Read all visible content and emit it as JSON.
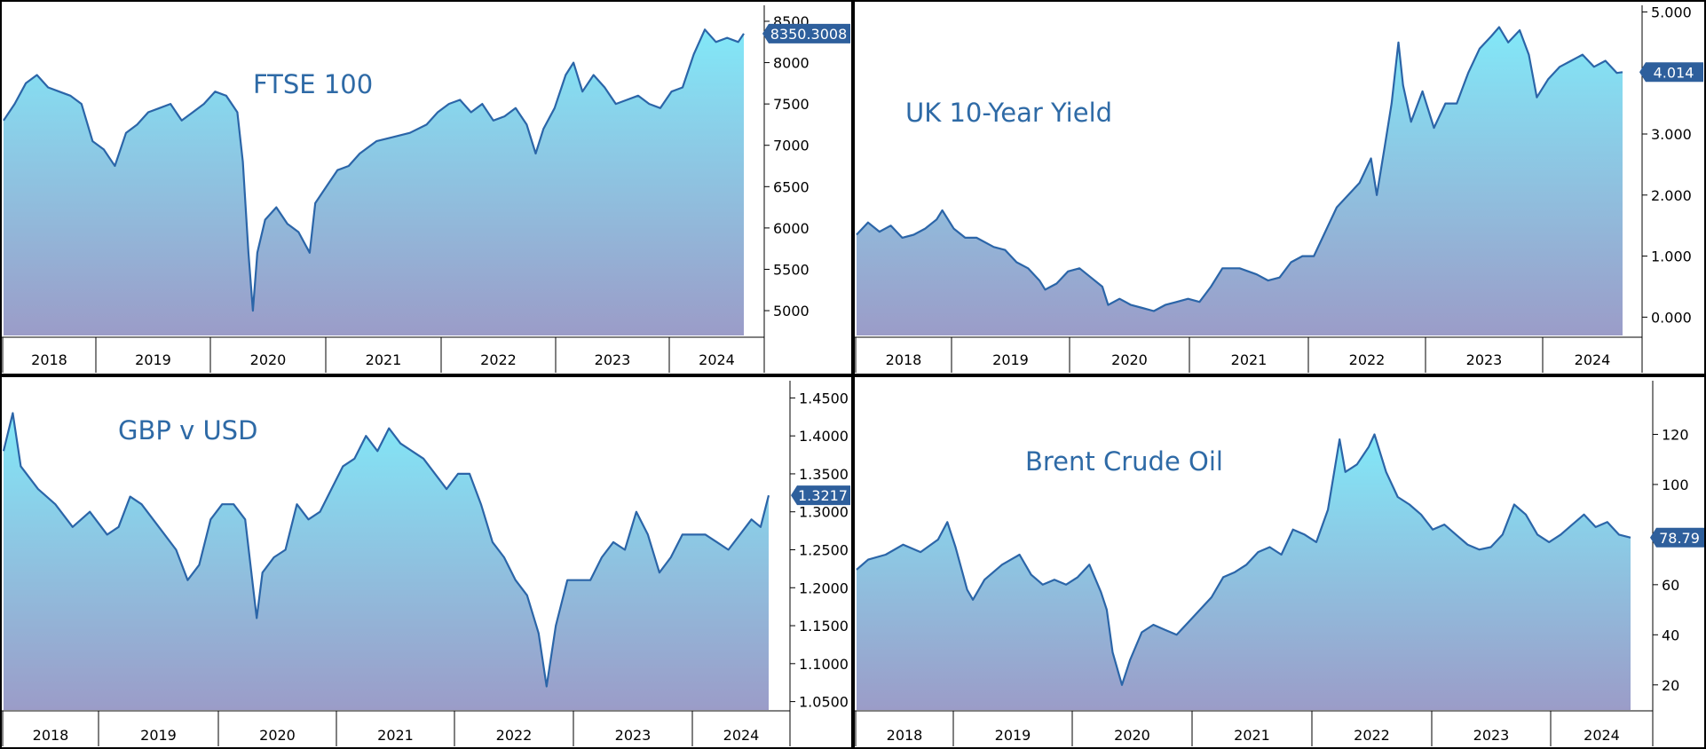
{
  "colors": {
    "line": "#2b65a8",
    "title": "#2e6aa6",
    "fill_top": "#82e8f8",
    "fill_bottom": "#9b9cc8",
    "badge": "#2e5f9c",
    "border": "#000000"
  },
  "chart_data": [
    {
      "type": "area",
      "title": "FTSE 100",
      "ylim": [
        4700,
        8650
      ],
      "yticks": [
        5000,
        5500,
        6000,
        6500,
        7000,
        7500,
        8000,
        8500
      ],
      "tick_labels": [
        "5000",
        "5500",
        "6000",
        "6500",
        "7000",
        "7500",
        "8000",
        "8500"
      ],
      "x_labels": [
        "2018",
        "2019",
        "2020",
        "2021",
        "2022",
        "2023",
        "2024"
      ],
      "last_value": 8350.3008,
      "last_label": "8350.3008",
      "points": [
        [
          2018.0,
          7300
        ],
        [
          2018.1,
          7500
        ],
        [
          2018.2,
          7750
        ],
        [
          2018.3,
          7850
        ],
        [
          2018.4,
          7700
        ],
        [
          2018.5,
          7650
        ],
        [
          2018.6,
          7600
        ],
        [
          2018.7,
          7500
        ],
        [
          2018.8,
          7050
        ],
        [
          2018.9,
          6950
        ],
        [
          2019.0,
          6750
        ],
        [
          2019.1,
          7150
        ],
        [
          2019.2,
          7250
        ],
        [
          2019.3,
          7400
        ],
        [
          2019.4,
          7450
        ],
        [
          2019.5,
          7500
        ],
        [
          2019.6,
          7300
        ],
        [
          2019.7,
          7400
        ],
        [
          2019.8,
          7500
        ],
        [
          2019.9,
          7650
        ],
        [
          2020.0,
          7600
        ],
        [
          2020.1,
          7400
        ],
        [
          2020.15,
          6800
        ],
        [
          2020.2,
          5700
        ],
        [
          2020.24,
          5000
        ],
        [
          2020.28,
          5700
        ],
        [
          2020.35,
          6100
        ],
        [
          2020.45,
          6250
        ],
        [
          2020.55,
          6050
        ],
        [
          2020.65,
          5950
        ],
        [
          2020.75,
          5700
        ],
        [
          2020.8,
          6300
        ],
        [
          2020.9,
          6500
        ],
        [
          2021.0,
          6700
        ],
        [
          2021.1,
          6750
        ],
        [
          2021.2,
          6900
        ],
        [
          2021.35,
          7050
        ],
        [
          2021.5,
          7100
        ],
        [
          2021.65,
          7150
        ],
        [
          2021.8,
          7250
        ],
        [
          2021.9,
          7400
        ],
        [
          2022.0,
          7500
        ],
        [
          2022.1,
          7550
        ],
        [
          2022.2,
          7400
        ],
        [
          2022.3,
          7500
        ],
        [
          2022.4,
          7300
        ],
        [
          2022.5,
          7350
        ],
        [
          2022.6,
          7450
        ],
        [
          2022.7,
          7250
        ],
        [
          2022.78,
          6900
        ],
        [
          2022.85,
          7200
        ],
        [
          2022.95,
          7450
        ],
        [
          2023.05,
          7850
        ],
        [
          2023.12,
          8000
        ],
        [
          2023.2,
          7650
        ],
        [
          2023.3,
          7850
        ],
        [
          2023.4,
          7700
        ],
        [
          2023.5,
          7500
        ],
        [
          2023.6,
          7550
        ],
        [
          2023.7,
          7600
        ],
        [
          2023.8,
          7500
        ],
        [
          2023.9,
          7450
        ],
        [
          2024.0,
          7650
        ],
        [
          2024.1,
          7700
        ],
        [
          2024.15,
          7900
        ],
        [
          2024.2,
          8100
        ],
        [
          2024.3,
          8400
        ],
        [
          2024.4,
          8250
        ],
        [
          2024.5,
          8300
        ],
        [
          2024.6,
          8250
        ],
        [
          2024.65,
          8350
        ]
      ]
    },
    {
      "type": "area",
      "title": "UK 10-Year Yield",
      "ylim": [
        -0.3,
        5.05
      ],
      "yticks": [
        0,
        1,
        2,
        3,
        4,
        5
      ],
      "tick_labels": [
        "0.000",
        "1.000",
        "2.000",
        "3.000",
        "4.000",
        "5.000"
      ],
      "x_labels": [
        "2018",
        "2019",
        "2020",
        "2021",
        "2022",
        "2023",
        "2024"
      ],
      "last_value": 4.014,
      "last_label": "4.014",
      "points": [
        [
          2018.0,
          1.35
        ],
        [
          2018.1,
          1.55
        ],
        [
          2018.2,
          1.4
        ],
        [
          2018.3,
          1.5
        ],
        [
          2018.4,
          1.3
        ],
        [
          2018.5,
          1.35
        ],
        [
          2018.6,
          1.45
        ],
        [
          2018.7,
          1.6
        ],
        [
          2018.75,
          1.75
        ],
        [
          2018.85,
          1.45
        ],
        [
          2018.95,
          1.3
        ],
        [
          2019.05,
          1.3
        ],
        [
          2019.2,
          1.15
        ],
        [
          2019.3,
          1.1
        ],
        [
          2019.4,
          0.9
        ],
        [
          2019.5,
          0.8
        ],
        [
          2019.6,
          0.6
        ],
        [
          2019.65,
          0.45
        ],
        [
          2019.75,
          0.55
        ],
        [
          2019.85,
          0.75
        ],
        [
          2019.95,
          0.8
        ],
        [
          2020.05,
          0.65
        ],
        [
          2020.15,
          0.5
        ],
        [
          2020.2,
          0.2
        ],
        [
          2020.3,
          0.3
        ],
        [
          2020.4,
          0.2
        ],
        [
          2020.5,
          0.15
        ],
        [
          2020.6,
          0.1
        ],
        [
          2020.7,
          0.2
        ],
        [
          2020.8,
          0.25
        ],
        [
          2020.9,
          0.3
        ],
        [
          2021.0,
          0.25
        ],
        [
          2021.1,
          0.5
        ],
        [
          2021.2,
          0.8
        ],
        [
          2021.35,
          0.8
        ],
        [
          2021.5,
          0.7
        ],
        [
          2021.6,
          0.6
        ],
        [
          2021.7,
          0.65
        ],
        [
          2021.8,
          0.9
        ],
        [
          2021.9,
          1.0
        ],
        [
          2022.0,
          1.0
        ],
        [
          2022.1,
          1.4
        ],
        [
          2022.2,
          1.8
        ],
        [
          2022.3,
          2.0
        ],
        [
          2022.4,
          2.2
        ],
        [
          2022.5,
          2.6
        ],
        [
          2022.55,
          2.0
        ],
        [
          2022.62,
          2.8
        ],
        [
          2022.68,
          3.5
        ],
        [
          2022.74,
          4.5
        ],
        [
          2022.78,
          3.8
        ],
        [
          2022.85,
          3.2
        ],
        [
          2022.95,
          3.7
        ],
        [
          2023.05,
          3.1
        ],
        [
          2023.15,
          3.5
        ],
        [
          2023.25,
          3.5
        ],
        [
          2023.35,
          4.0
        ],
        [
          2023.45,
          4.4
        ],
        [
          2023.55,
          4.6
        ],
        [
          2023.62,
          4.75
        ],
        [
          2023.7,
          4.5
        ],
        [
          2023.8,
          4.7
        ],
        [
          2023.88,
          4.3
        ],
        [
          2023.95,
          3.6
        ],
        [
          2024.05,
          3.9
        ],
        [
          2024.15,
          4.1
        ],
        [
          2024.25,
          4.2
        ],
        [
          2024.35,
          4.3
        ],
        [
          2024.45,
          4.1
        ],
        [
          2024.55,
          4.2
        ],
        [
          2024.65,
          4.0
        ],
        [
          2024.7,
          4.014
        ]
      ]
    },
    {
      "type": "area",
      "title": "GBP v USD",
      "ylim": [
        1.039,
        1.468
      ],
      "yticks": [
        1.05,
        1.1,
        1.15,
        1.2,
        1.25,
        1.3,
        1.35,
        1.4,
        1.45
      ],
      "tick_labels": [
        "1.0500",
        "1.1000",
        "1.1500",
        "1.2000",
        "1.2500",
        "1.3000",
        "1.3500",
        "1.4000",
        "1.4500"
      ],
      "x_labels": [
        "2018",
        "2019",
        "2020",
        "2021",
        "2022",
        "2023",
        "2024"
      ],
      "last_value": 1.3217,
      "last_label": "1.3217",
      "points": [
        [
          2018.0,
          1.38
        ],
        [
          2018.08,
          1.43
        ],
        [
          2018.15,
          1.36
        ],
        [
          2018.3,
          1.33
        ],
        [
          2018.45,
          1.31
        ],
        [
          2018.6,
          1.28
        ],
        [
          2018.75,
          1.3
        ],
        [
          2018.9,
          1.27
        ],
        [
          2019.0,
          1.28
        ],
        [
          2019.1,
          1.32
        ],
        [
          2019.2,
          1.31
        ],
        [
          2019.3,
          1.29
        ],
        [
          2019.4,
          1.27
        ],
        [
          2019.5,
          1.25
        ],
        [
          2019.6,
          1.21
        ],
        [
          2019.7,
          1.23
        ],
        [
          2019.8,
          1.29
        ],
        [
          2019.9,
          1.31
        ],
        [
          2020.0,
          1.31
        ],
        [
          2020.1,
          1.29
        ],
        [
          2020.2,
          1.16
        ],
        [
          2020.25,
          1.22
        ],
        [
          2020.35,
          1.24
        ],
        [
          2020.45,
          1.25
        ],
        [
          2020.55,
          1.31
        ],
        [
          2020.65,
          1.29
        ],
        [
          2020.75,
          1.3
        ],
        [
          2020.85,
          1.33
        ],
        [
          2020.95,
          1.36
        ],
        [
          2021.05,
          1.37
        ],
        [
          2021.15,
          1.4
        ],
        [
          2021.25,
          1.38
        ],
        [
          2021.35,
          1.41
        ],
        [
          2021.45,
          1.39
        ],
        [
          2021.55,
          1.38
        ],
        [
          2021.65,
          1.37
        ],
        [
          2021.75,
          1.35
        ],
        [
          2021.85,
          1.33
        ],
        [
          2021.95,
          1.35
        ],
        [
          2022.05,
          1.35
        ],
        [
          2022.15,
          1.31
        ],
        [
          2022.25,
          1.26
        ],
        [
          2022.35,
          1.24
        ],
        [
          2022.45,
          1.21
        ],
        [
          2022.55,
          1.19
        ],
        [
          2022.65,
          1.14
        ],
        [
          2022.72,
          1.07
        ],
        [
          2022.8,
          1.15
        ],
        [
          2022.9,
          1.21
        ],
        [
          2023.0,
          1.21
        ],
        [
          2023.1,
          1.21
        ],
        [
          2023.2,
          1.24
        ],
        [
          2023.3,
          1.26
        ],
        [
          2023.4,
          1.25
        ],
        [
          2023.5,
          1.3
        ],
        [
          2023.6,
          1.27
        ],
        [
          2023.7,
          1.22
        ],
        [
          2023.8,
          1.24
        ],
        [
          2023.9,
          1.27
        ],
        [
          2024.0,
          1.27
        ],
        [
          2024.1,
          1.27
        ],
        [
          2024.2,
          1.26
        ],
        [
          2024.3,
          1.25
        ],
        [
          2024.4,
          1.27
        ],
        [
          2024.5,
          1.29
        ],
        [
          2024.58,
          1.28
        ],
        [
          2024.65,
          1.3217
        ]
      ]
    },
    {
      "type": "area",
      "title": "Brent Crude Oil",
      "ylim": [
        10,
        140
      ],
      "yticks": [
        20,
        40,
        60,
        80,
        100,
        120
      ],
      "tick_labels": [
        "20",
        "40",
        "60",
        "80",
        "100",
        "120"
      ],
      "x_labels": [
        "2018",
        "2019",
        "2020",
        "2021",
        "2022",
        "2023",
        "2024"
      ],
      "last_value": 78.79,
      "last_label": "78.79",
      "points": [
        [
          2018.0,
          66
        ],
        [
          2018.1,
          70
        ],
        [
          2018.25,
          72
        ],
        [
          2018.4,
          76
        ],
        [
          2018.55,
          73
        ],
        [
          2018.7,
          78
        ],
        [
          2018.78,
          85
        ],
        [
          2018.85,
          75
        ],
        [
          2018.95,
          58
        ],
        [
          2019.0,
          54
        ],
        [
          2019.1,
          62
        ],
        [
          2019.25,
          68
        ],
        [
          2019.4,
          72
        ],
        [
          2019.5,
          64
        ],
        [
          2019.6,
          60
        ],
        [
          2019.7,
          62
        ],
        [
          2019.8,
          60
        ],
        [
          2019.9,
          63
        ],
        [
          2020.0,
          68
        ],
        [
          2020.1,
          57
        ],
        [
          2020.15,
          50
        ],
        [
          2020.2,
          33
        ],
        [
          2020.28,
          20
        ],
        [
          2020.35,
          30
        ],
        [
          2020.45,
          41
        ],
        [
          2020.55,
          44
        ],
        [
          2020.65,
          42
        ],
        [
          2020.75,
          40
        ],
        [
          2020.85,
          45
        ],
        [
          2020.95,
          50
        ],
        [
          2021.05,
          55
        ],
        [
          2021.15,
          63
        ],
        [
          2021.25,
          65
        ],
        [
          2021.35,
          68
        ],
        [
          2021.45,
          73
        ],
        [
          2021.55,
          75
        ],
        [
          2021.65,
          72
        ],
        [
          2021.75,
          82
        ],
        [
          2021.85,
          80
        ],
        [
          2021.95,
          77
        ],
        [
          2022.05,
          90
        ],
        [
          2022.15,
          118
        ],
        [
          2022.2,
          105
        ],
        [
          2022.3,
          108
        ],
        [
          2022.4,
          115
        ],
        [
          2022.45,
          120
        ],
        [
          2022.55,
          105
        ],
        [
          2022.65,
          95
        ],
        [
          2022.75,
          92
        ],
        [
          2022.85,
          88
        ],
        [
          2022.95,
          82
        ],
        [
          2023.05,
          84
        ],
        [
          2023.15,
          80
        ],
        [
          2023.25,
          76
        ],
        [
          2023.35,
          74
        ],
        [
          2023.45,
          75
        ],
        [
          2023.55,
          80
        ],
        [
          2023.65,
          92
        ],
        [
          2023.75,
          88
        ],
        [
          2023.85,
          80
        ],
        [
          2023.95,
          77
        ],
        [
          2024.05,
          80
        ],
        [
          2024.15,
          84
        ],
        [
          2024.25,
          88
        ],
        [
          2024.35,
          83
        ],
        [
          2024.45,
          85
        ],
        [
          2024.55,
          80
        ],
        [
          2024.65,
          78.79
        ]
      ]
    }
  ]
}
